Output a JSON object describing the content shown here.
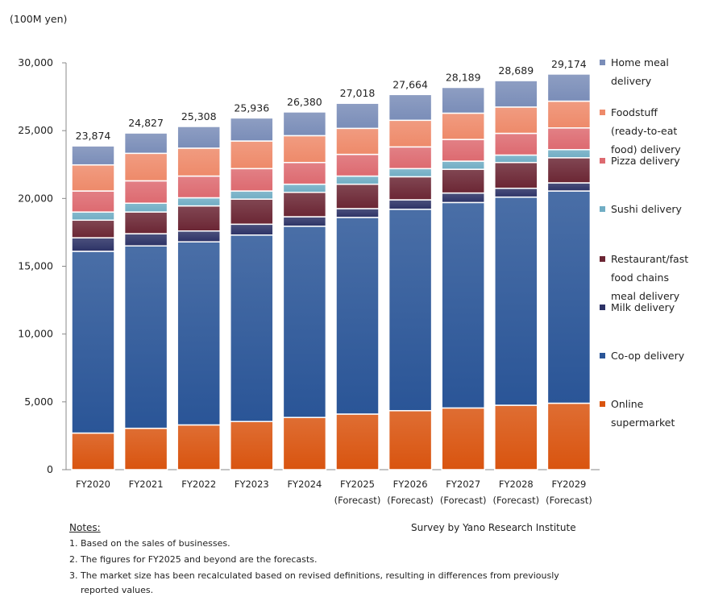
{
  "chart_data": {
    "type": "bar",
    "stacked": true,
    "unit_label": "(100M yen)",
    "categories": [
      "FY2020",
      "FY2021",
      "FY2022",
      "FY2023",
      "FY2024",
      "FY2025",
      "FY2026",
      "FY2027",
      "FY2028",
      "FY2029"
    ],
    "category_sublabels": [
      "",
      "",
      "",
      "",
      "",
      "(Forecast)",
      "(Forecast)",
      "(Forecast)",
      "(Forecast)",
      "(Forecast)"
    ],
    "totals": [
      23874,
      24827,
      25308,
      25936,
      26380,
      27018,
      27664,
      28189,
      28689,
      29174
    ],
    "total_labels": [
      "23,874",
      "24,827",
      "25,308",
      "25,936",
      "26,380",
      "27,018",
      "27,664",
      "28,189",
      "28,689",
      "29,174"
    ],
    "ylim": [
      0,
      30000
    ],
    "yticks": [
      "0",
      "5,000",
      "10,000",
      "15,000",
      "20,000",
      "25,000",
      "30,000"
    ],
    "grid": false,
    "legend_position": "right",
    "series": [
      {
        "name": "Online supermarket",
        "color": "#d9540f",
        "values": [
          2700,
          3050,
          3300,
          3550,
          3850,
          4100,
          4350,
          4550,
          4750,
          4900
        ]
      },
      {
        "name": "Co-op delivery",
        "color": "#2a5597",
        "values": [
          13400,
          13450,
          13500,
          13750,
          14100,
          14500,
          14850,
          15150,
          15350,
          15650
        ]
      },
      {
        "name": "Milk delivery",
        "color": "#2c3266",
        "values": [
          1000,
          900,
          800,
          800,
          700,
          650,
          700,
          700,
          650,
          600
        ]
      },
      {
        "name": "Restaurant/fast food chains meal delivery",
        "color": "#6b2634",
        "values": [
          1300,
          1600,
          1850,
          1850,
          1800,
          1800,
          1700,
          1750,
          1900,
          1850
        ]
      },
      {
        "name": "Sushi delivery",
        "color": "#70adc4",
        "values": [
          600,
          650,
          600,
          600,
          600,
          600,
          600,
          600,
          550,
          600
        ]
      },
      {
        "name": "Pizza delivery",
        "color": "#dd6a70",
        "values": [
          1550,
          1650,
          1600,
          1650,
          1600,
          1600,
          1600,
          1600,
          1600,
          1600
        ]
      },
      {
        "name": "Foodstuff (ready-to-eat food) delivery",
        "color": "#ee8a6a",
        "values": [
          1924,
          2027,
          2058,
          2036,
          1980,
          1918,
          1964,
          1939,
          1939,
          1974
        ]
      },
      {
        "name": "Home meal delivery",
        "color": "#7a8db8",
        "values": [
          1400,
          1500,
          1600,
          1700,
          1750,
          1850,
          1900,
          1900,
          1950,
          2000
        ]
      }
    ]
  },
  "source": "Survey by Yano Research Institute",
  "notes": {
    "heading": "Notes:",
    "items": [
      "1. Based on the sales of businesses.",
      "2. The figures for FY2025 and beyond are the forecasts.",
      "3. The market size has been recalculated based on revised definitions, resulting in differences from previously",
      "reported values."
    ]
  }
}
